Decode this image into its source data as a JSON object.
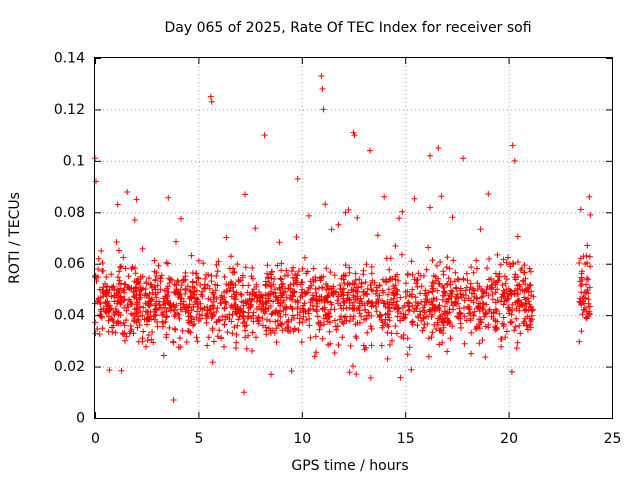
{
  "chart_data": {
    "type": "scatter",
    "title": "Day 065 of 2025, Rate Of TEC Index for receiver sofi",
    "xlabel": "GPS time / hours",
    "ylabel": "ROTI / TECUs",
    "xlim": [
      0,
      25
    ],
    "ylim": [
      0,
      0.14
    ],
    "xticks": [
      "0",
      "5",
      "10",
      "15",
      "20",
      "25"
    ],
    "yticks": [
      "0",
      "0.02",
      "0.04",
      "0.06",
      "0.08",
      "0.1",
      "0.12",
      "0.14"
    ],
    "grid": true,
    "marker": "+",
    "color": "#ff0000",
    "gap_hours": [
      21.2,
      23.4
    ],
    "series": [
      {
        "values_note": "dense scatter of ROTI samples",
        "x": [
          0.0,
          0.05,
          0.3,
          1.1,
          2.0,
          3.8,
          5.6,
          5.65,
          7.2,
          8.2,
          9.8,
          10.95,
          11.0,
          11.05,
          12.5,
          12.55,
          13.3,
          16.2,
          16.6,
          17.8,
          20.2,
          20.3,
          23.9,
          23.95
        ],
        "y": [
          0.101,
          0.092,
          0.065,
          0.083,
          0.085,
          0.007,
          0.125,
          0.123,
          0.01,
          0.11,
          0.093,
          0.133,
          0.128,
          0.12,
          0.111,
          0.11,
          0.104,
          0.102,
          0.105,
          0.101,
          0.106,
          0.1,
          0.086,
          0.079
        ]
      }
    ]
  }
}
